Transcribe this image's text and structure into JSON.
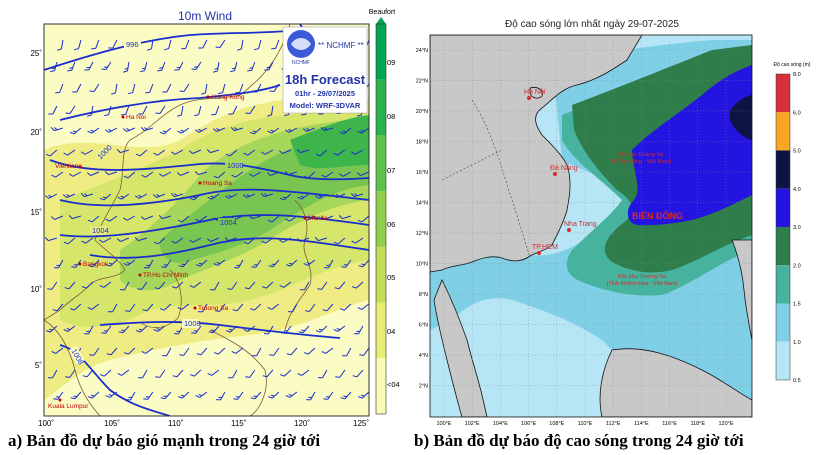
{
  "left_map": {
    "title": "10m Wind",
    "logo_text": "NCHMF",
    "agency": "** NCHMF **",
    "forecast": "18h Forecast",
    "valid_time": "01hr - 29/07/2025",
    "model": "Model: WRF-3DVAR",
    "lon_ticks": [
      "100˚",
      "105˚",
      "110˚",
      "115˚",
      "120˚",
      "125˚"
    ],
    "lat_ticks": [
      "25˚",
      "20˚",
      "15˚",
      "10˚",
      "5˚"
    ],
    "colorbar_title": "Beaufort",
    "colorbar_labels": [
      "09",
      "08",
      "07",
      "06",
      "05",
      "04",
      "<04"
    ],
    "colorbar_colors": [
      "#00a651",
      "#27b34a",
      "#5cc24a",
      "#8ed04c",
      "#c2de56",
      "#e8ec70",
      "#fbfbb8"
    ],
    "isobars": [
      "996",
      "1000",
      "1000",
      "1004",
      "1004",
      "1008",
      "1008"
    ],
    "places": [
      "Hong Kong",
      "Ha Noi",
      "Vientiane",
      "Hoang Sa",
      "Manila",
      "Bangkok",
      "TP.Ho Chi Minh",
      "Truong Sa",
      "Kuala Lumpur"
    ]
  },
  "right_map": {
    "title": "Độ cao sóng lớn nhất ngày 29-07-2025",
    "lon_ticks": [
      "100°E",
      "102°E",
      "104°E",
      "106°E",
      "108°E",
      "110°E",
      "112°E",
      "114°E",
      "116°E",
      "118°E",
      "120°E"
    ],
    "lat_ticks": [
      "24°N",
      "22°N",
      "20°N",
      "18°N",
      "16°N",
      "14°N",
      "12°N",
      "10°N",
      "8°N",
      "6°N",
      "4°N",
      "2°N"
    ],
    "colorbar_title": "Độ cao sóng (m)",
    "colorbar_labels": [
      "8.0",
      "6.0",
      "5.0",
      "4.0",
      "3.0",
      "2.0",
      "1.5",
      "1.0",
      "0.5"
    ],
    "colorbar_colors": [
      "#d7303a",
      "#f6a623",
      "#0c1446",
      "#2414e0",
      "#2e7d4a",
      "#46b39f",
      "#7fd0e6",
      "#b6e6f5"
    ],
    "places": [
      "Hà Nội",
      "Đà Nẵng",
      "Nha Trang",
      "TP.HCM",
      "BIỂN ĐÔNG"
    ],
    "annotations": [
      "Đặc khu Hoàng Sa",
      "(TP. Đà Nẵng - Việt Nam)",
      "Đặc khu Trường Sa",
      "(Tỉnh Khánh Hòa - Việt Nam)"
    ]
  },
  "captions": {
    "left": "a) Bản đồ dự báo gió mạnh trong 24 giờ tới",
    "right": "b) Bản đồ dự báo độ cao sóng trong 24 giờ tới"
  }
}
